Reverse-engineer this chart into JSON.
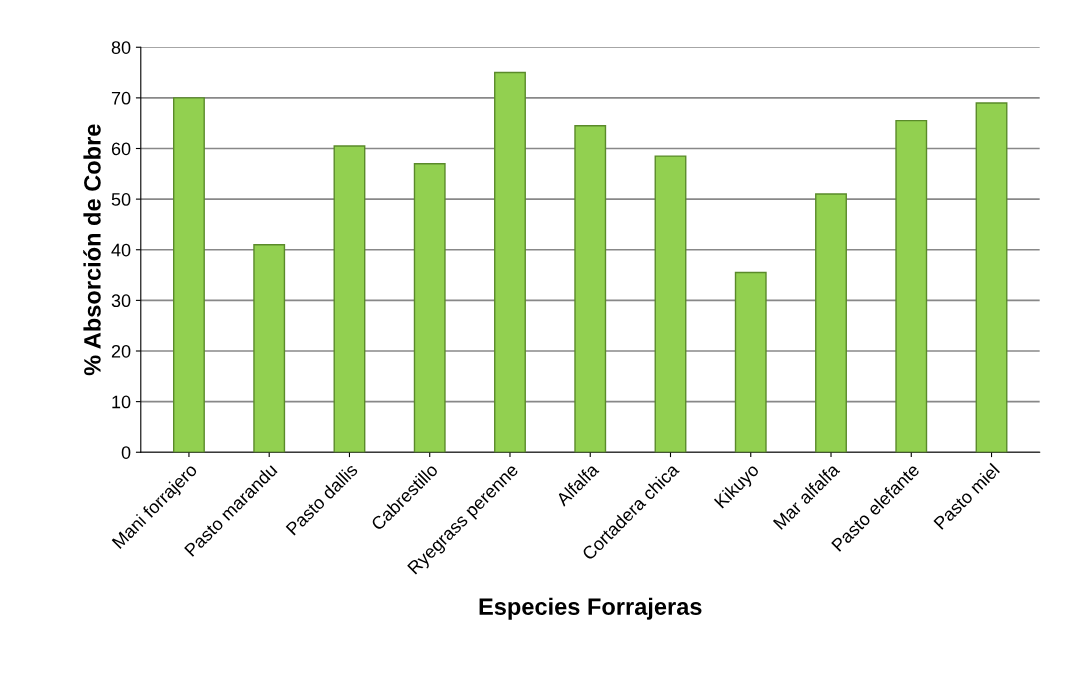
{
  "chart_data": {
    "type": "bar",
    "xlabel": "Especies Forrajeras",
    "ylabel": "% Absorción de Cobre",
    "categories": [
      "Mani forrajero",
      "Pasto marandu",
      "Pasto dallis",
      "Cabrestillo",
      "Ryegrass perenne",
      "Alfalfa",
      "Cortadera chica",
      "Kikuyo",
      "Mar alfalfa",
      "Pasto elefante",
      "Pasto miel"
    ],
    "values": [
      70,
      41,
      60.5,
      57,
      75,
      64.5,
      58.5,
      35.5,
      51,
      65.5,
      69
    ],
    "color": "#92d050",
    "ylim": [
      0,
      80
    ],
    "yticks": [
      0,
      10,
      20,
      30,
      40,
      50,
      60,
      70,
      80
    ],
    "grid": "y"
  }
}
